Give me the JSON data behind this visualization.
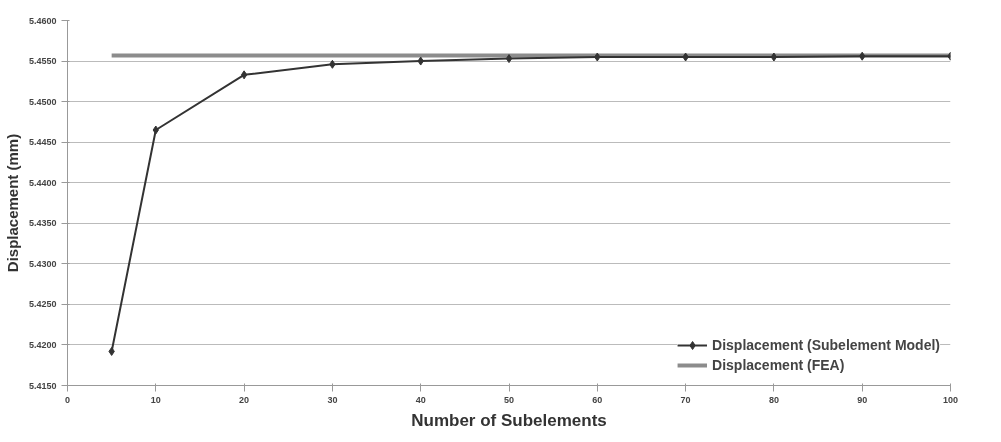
{
  "chart_data": {
    "type": "line",
    "xlabel": "Number of Subelements",
    "ylabel": "Displacement (mm)",
    "xlim": [
      0,
      100
    ],
    "xticks": [
      0,
      10,
      20,
      30,
      40,
      50,
      60,
      70,
      80,
      90,
      100
    ],
    "ylim": [
      5.415,
      5.46
    ],
    "yticks": [
      {
        "value": 5.415,
        "label": "5.4150"
      },
      {
        "value": 5.42,
        "label": "5.4200"
      },
      {
        "value": 5.425,
        "label": "5.4250"
      },
      {
        "value": 5.43,
        "label": "5.4300"
      },
      {
        "value": 5.435,
        "label": "5.4350"
      },
      {
        "value": 5.44,
        "label": "5.4400"
      },
      {
        "value": 5.445,
        "label": "5.4450"
      },
      {
        "value": 5.45,
        "label": "5.4500"
      },
      {
        "value": 5.455,
        "label": "5.4550"
      },
      {
        "value": 5.46,
        "label": "5.4600"
      }
    ],
    "grid": "y",
    "legend": "bottom right",
    "series": [
      {
        "name": "Displacement (Subelement Model)",
        "color": "#333333",
        "marker": "diamond",
        "x": [
          5,
          10,
          20,
          30,
          40,
          50,
          60,
          70,
          80,
          90,
          100
        ],
        "values": [
          5.4192,
          5.4465,
          5.4533,
          5.4546,
          5.455,
          5.4553,
          5.4555,
          5.4555,
          5.4555,
          5.4556,
          5.4556
        ]
      },
      {
        "name": "Displacement (FEA)",
        "color": "#8c8c8c",
        "marker": "none",
        "x": [
          5,
          100
        ],
        "values": [
          5.4557,
          5.4557
        ]
      }
    ]
  }
}
